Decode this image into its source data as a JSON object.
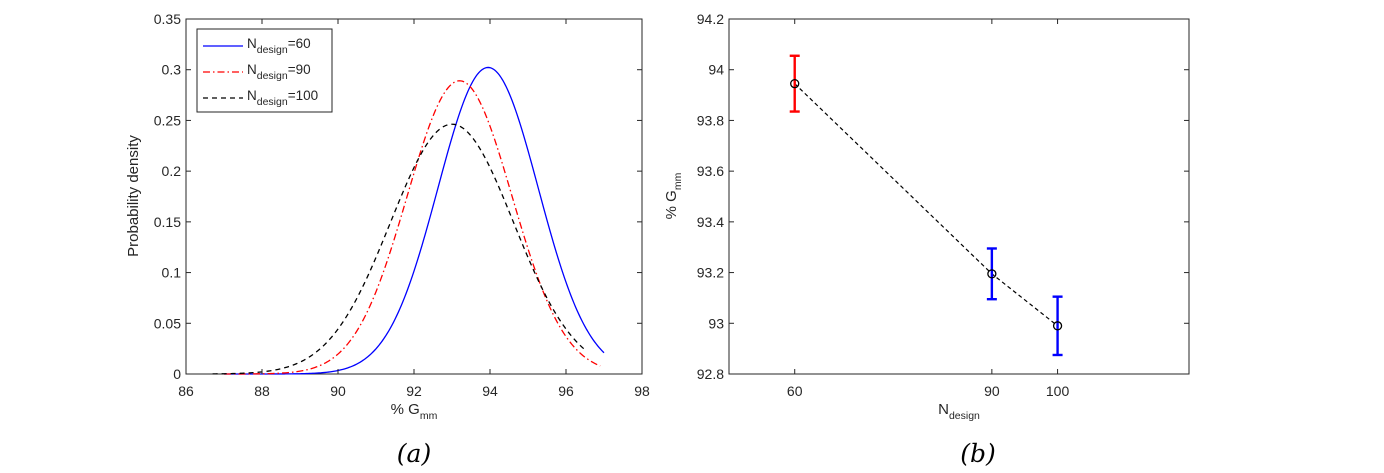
{
  "chart_data": [
    {
      "type": "line",
      "caption": "(a)",
      "xlabel": "% G",
      "xlabel_sub": "mm",
      "ylabel": "Probability density",
      "xlim": [
        86,
        98
      ],
      "ylim": [
        0,
        0.35
      ],
      "xticks": [
        "86",
        "88",
        "90",
        "92",
        "94",
        "96",
        "98"
      ],
      "yticks": [
        "0",
        "0.05",
        "0.1",
        "0.15",
        "0.2",
        "0.25",
        "0.3",
        "0.35"
      ],
      "legend_position": "top-left",
      "series": [
        {
          "name": "N",
          "name_sub": "design",
          "name_suffix": "=60",
          "color": "#0000ff",
          "style": "solid",
          "mean": 93.95,
          "sd": 1.32,
          "x_range": [
            87.0,
            97.0
          ]
        },
        {
          "name": "N",
          "name_sub": "design",
          "name_suffix": "=90",
          "color": "#ff0000",
          "style": "dashdot",
          "mean": 93.2,
          "sd": 1.38,
          "x_range": [
            87.0,
            96.9
          ]
        },
        {
          "name": "N",
          "name_sub": "design",
          "name_suffix": "=100",
          "color": "#000000",
          "style": "dashed",
          "mean": 93.0,
          "sd": 1.62,
          "x_range": [
            86.7,
            96.5
          ]
        }
      ]
    },
    {
      "type": "errorbar",
      "caption": "(b)",
      "xlabel": "N",
      "xlabel_sub": "design",
      "ylabel": "% G",
      "ylabel_sub": "mm",
      "xlim": [
        50,
        120
      ],
      "ylim": [
        92.8,
        94.2
      ],
      "xticks": [
        "60",
        "90",
        "100"
      ],
      "xtick_values": [
        60,
        90,
        100
      ],
      "yticks": [
        "92.8",
        "93",
        "93.2",
        "93.4",
        "93.6",
        "93.8",
        "94",
        "94.2"
      ],
      "points": [
        {
          "x": 60,
          "y": 93.945,
          "low": 93.835,
          "high": 94.055,
          "color": "#ff0000"
        },
        {
          "x": 90,
          "y": 93.195,
          "low": 93.095,
          "high": 93.295,
          "color": "#0000ff"
        },
        {
          "x": 100,
          "y": 92.99,
          "low": 92.875,
          "high": 93.105,
          "color": "#0000ff"
        }
      ]
    }
  ]
}
